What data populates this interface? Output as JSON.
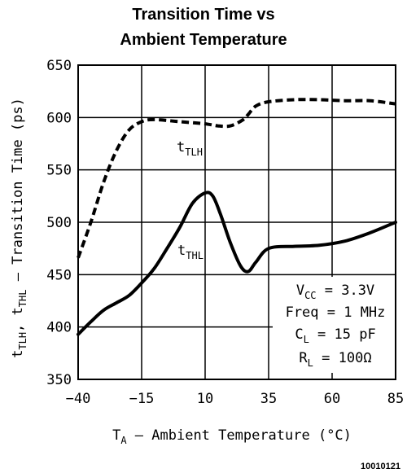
{
  "chart_data": {
    "type": "line",
    "title_lines": [
      "Transition Time vs",
      "Ambient Temperature"
    ],
    "xlabel": {
      "main": "T",
      "sub": "A",
      "rest": " – Ambient Temperature (°C)"
    },
    "ylabel": {
      "p1": "t",
      "s1": "TLH",
      "p2": ", t",
      "s2": "THL",
      "p3": " – Transition Time (ps)"
    },
    "xlim": [
      -40,
      85
    ],
    "ylim": [
      350,
      650
    ],
    "x_ticks": [
      -40,
      -15,
      10,
      35,
      60,
      85
    ],
    "y_ticks": [
      350,
      400,
      450,
      500,
      550,
      600,
      650
    ],
    "x_tick_labels": [
      "−40",
      "−15",
      "10",
      "35",
      "60",
      "85"
    ],
    "y_tick_labels": [
      "350",
      "400",
      "450",
      "500",
      "550",
      "600",
      "650"
    ],
    "grid": true,
    "series": [
      {
        "name": "tTLH",
        "label_main": "t",
        "label_sub": "TLH",
        "style": "dashed",
        "color": "#000000",
        "x": [
          -40,
          -35,
          -30,
          -25,
          -20,
          -15,
          -10,
          0,
          10,
          15,
          20,
          25,
          27,
          30,
          35,
          45,
          55,
          65,
          75,
          85
        ],
        "y": [
          466,
          500,
          538,
          568,
          588,
          596,
          598,
          596,
          594,
          592,
          592,
          598,
          603,
          611,
          615,
          617,
          617,
          616,
          616,
          613
        ]
      },
      {
        "name": "tTHL",
        "label_main": "t",
        "label_sub": "THL",
        "style": "solid",
        "color": "#000000",
        "x": [
          -40,
          -35,
          -30,
          -25,
          -20,
          -15,
          -10,
          -5,
          0,
          5,
          10,
          13,
          16,
          20,
          24,
          27,
          30,
          35,
          45,
          55,
          65,
          75,
          85
        ],
        "y": [
          393,
          405,
          416,
          423,
          430,
          442,
          456,
          475,
          495,
          518,
          528,
          525,
          508,
          480,
          458,
          453,
          462,
          475,
          477,
          478,
          482,
          490,
          500
        ]
      }
    ],
    "annotations": [
      {
        "main": "V",
        "sub": "CC",
        "rest": " = 3.3V"
      },
      {
        "main": "Freq = 1 MHz",
        "sub": "",
        "rest": ""
      },
      {
        "main": "C",
        "sub": "L",
        "rest": " = 15 pF"
      },
      {
        "main": "R",
        "sub": "L",
        "rest": " = 100Ω"
      }
    ],
    "figure_id": "10010121"
  }
}
